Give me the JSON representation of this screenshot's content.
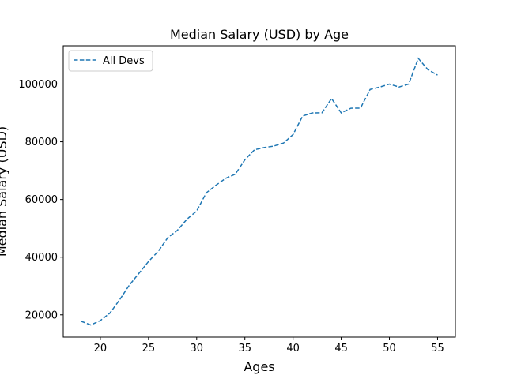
{
  "chart_data": {
    "type": "line",
    "title": "Median Salary (USD) by Age",
    "xlabel": "Ages",
    "ylabel": "Median Salary (USD)",
    "xlim": [
      16.15,
      56.85
    ],
    "ylim": [
      12275,
      113275
    ],
    "xticks": [
      20,
      25,
      30,
      35,
      40,
      45,
      50,
      55
    ],
    "yticks": [
      20000,
      40000,
      60000,
      80000,
      100000
    ],
    "grid": false,
    "legend_position": "upper-left",
    "series": [
      {
        "name": "All Devs",
        "color": "#1f77b4",
        "line_style": "dashed",
        "x": [
          18,
          19,
          20,
          21,
          22,
          23,
          24,
          25,
          26,
          27,
          28,
          29,
          30,
          31,
          32,
          33,
          34,
          35,
          36,
          37,
          38,
          39,
          40,
          41,
          42,
          43,
          44,
          45,
          46,
          47,
          48,
          49,
          50,
          51,
          52,
          53,
          54,
          55
        ],
        "y": [
          17784,
          16500,
          18012,
          20628,
          25206,
          30252,
          34368,
          38496,
          42000,
          46752,
          49320,
          53200,
          56000,
          62316,
          64928,
          67317,
          68748,
          73752,
          77232,
          78000,
          78508,
          79536,
          82488,
          88935,
          90000,
          90056,
          95000,
          90000,
          91633,
          91660,
          98150,
          98964,
          100000,
          98988,
          100000,
          108923,
          105000,
          103117
        ]
      }
    ]
  }
}
